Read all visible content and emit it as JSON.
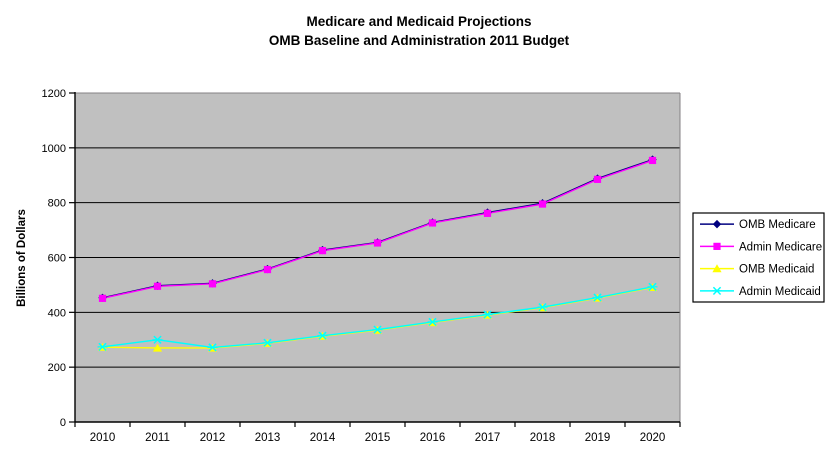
{
  "title": {
    "line1": "Medicare and Medicaid Projections",
    "line2": "OMB Baseline and Administration 2011 Budget"
  },
  "colors": {
    "plot_background": "#C0C0C0",
    "plot_border": "#848284",
    "gridline": "#000000",
    "axis": "#000000",
    "tick_text": "#000000",
    "legend_border": "#000000",
    "legend_background": "#FFFFFF"
  },
  "chart_data": {
    "type": "line",
    "title": "Medicare and Medicaid Projections",
    "subtitle": "OMB Baseline and Administration 2011 Budget",
    "xlabel": "",
    "ylabel": "Billions of Dollars",
    "categories": [
      "2010",
      "2011",
      "2012",
      "2013",
      "2014",
      "2015",
      "2016",
      "2017",
      "2018",
      "2019",
      "2020"
    ],
    "ylim": [
      0,
      1200
    ],
    "ytick_step": 200,
    "yticks": [
      0,
      200,
      400,
      600,
      800,
      1000,
      1200
    ],
    "grid": true,
    "legend_position": "right",
    "series": [
      {
        "name": "OMB Medicare",
        "color": "#000080",
        "marker": "diamond",
        "values": [
          453,
          497,
          506,
          558,
          627,
          655,
          728,
          764,
          798,
          888,
          957
        ]
      },
      {
        "name": "Admin Medicare",
        "color": "#FF00FF",
        "marker": "square",
        "values": [
          451,
          495,
          504,
          556,
          625,
          653,
          726,
          761,
          795,
          885,
          954
        ]
      },
      {
        "name": "OMB Medicaid",
        "color": "#FFFF00",
        "marker": "triangle",
        "values": [
          273,
          270,
          270,
          287,
          313,
          335,
          363,
          390,
          417,
          452,
          491
        ]
      },
      {
        "name": "Admin Medicaid",
        "color": "#00FFFF",
        "marker": "x",
        "values": [
          274,
          300,
          272,
          289,
          315,
          337,
          365,
          392,
          419,
          454,
          493
        ]
      }
    ]
  }
}
